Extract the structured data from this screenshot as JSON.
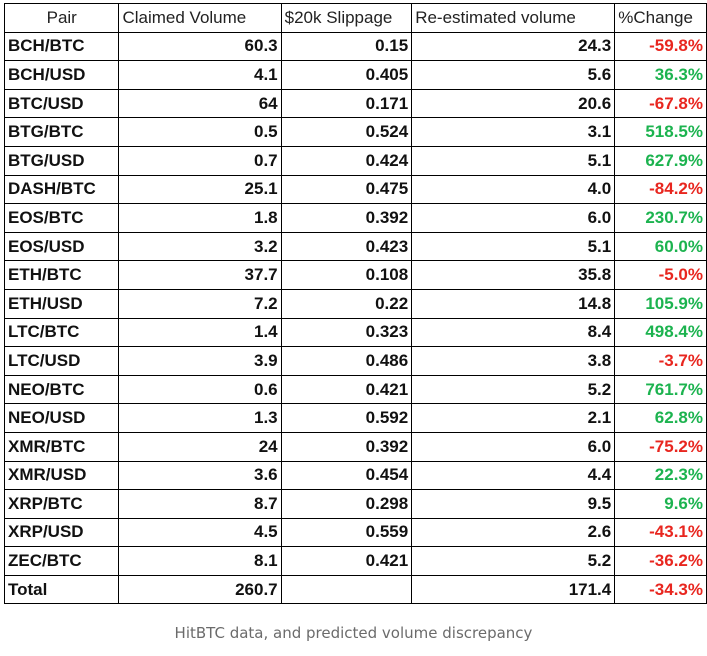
{
  "colors": {
    "positive": "#1cb34f",
    "negative": "#e8261f",
    "caption": "#6b6b6b",
    "border": "#000000"
  },
  "table": {
    "headers": [
      "Pair",
      "Claimed Volume",
      "$20k Slippage",
      "Re-estimated volume",
      "%Change"
    ],
    "rows": [
      {
        "pair": "BCH/BTC",
        "claimed": "60.3",
        "slippage": "0.15",
        "reestimated": "24.3",
        "change": "-59.8%"
      },
      {
        "pair": "BCH/USD",
        "claimed": "4.1",
        "slippage": "0.405",
        "reestimated": "5.6",
        "change": "36.3%"
      },
      {
        "pair": "BTC/USD",
        "claimed": "64",
        "slippage": "0.171",
        "reestimated": "20.6",
        "change": "-67.8%"
      },
      {
        "pair": "BTG/BTC",
        "claimed": "0.5",
        "slippage": "0.524",
        "reestimated": "3.1",
        "change": "518.5%"
      },
      {
        "pair": "BTG/USD",
        "claimed": "0.7",
        "slippage": "0.424",
        "reestimated": "5.1",
        "change": "627.9%"
      },
      {
        "pair": "DASH/BTC",
        "claimed": "25.1",
        "slippage": "0.475",
        "reestimated": "4.0",
        "change": "-84.2%"
      },
      {
        "pair": "EOS/BTC",
        "claimed": "1.8",
        "slippage": "0.392",
        "reestimated": "6.0",
        "change": "230.7%"
      },
      {
        "pair": "EOS/USD",
        "claimed": "3.2",
        "slippage": "0.423",
        "reestimated": "5.1",
        "change": "60.0%"
      },
      {
        "pair": "ETH/BTC",
        "claimed": "37.7",
        "slippage": "0.108",
        "reestimated": "35.8",
        "change": "-5.0%"
      },
      {
        "pair": "ETH/USD",
        "claimed": "7.2",
        "slippage": "0.22",
        "reestimated": "14.8",
        "change": "105.9%"
      },
      {
        "pair": "LTC/BTC",
        "claimed": "1.4",
        "slippage": "0.323",
        "reestimated": "8.4",
        "change": "498.4%"
      },
      {
        "pair": "LTC/USD",
        "claimed": "3.9",
        "slippage": "0.486",
        "reestimated": "3.8",
        "change": "-3.7%"
      },
      {
        "pair": "NEO/BTC",
        "claimed": "0.6",
        "slippage": "0.421",
        "reestimated": "5.2",
        "change": "761.7%"
      },
      {
        "pair": "NEO/USD",
        "claimed": "1.3",
        "slippage": "0.592",
        "reestimated": "2.1",
        "change": "62.8%"
      },
      {
        "pair": "XMR/BTC",
        "claimed": "24",
        "slippage": "0.392",
        "reestimated": "6.0",
        "change": "-75.2%"
      },
      {
        "pair": "XMR/USD",
        "claimed": "3.6",
        "slippage": "0.454",
        "reestimated": "4.4",
        "change": "22.3%"
      },
      {
        "pair": "XRP/BTC",
        "claimed": "8.7",
        "slippage": "0.298",
        "reestimated": "9.5",
        "change": "9.6%"
      },
      {
        "pair": "XRP/USD",
        "claimed": "4.5",
        "slippage": "0.559",
        "reestimated": "2.6",
        "change": "-43.1%"
      },
      {
        "pair": "ZEC/BTC",
        "claimed": "8.1",
        "slippage": "0.421",
        "reestimated": "5.2",
        "change": "-36.2%"
      }
    ],
    "total": {
      "pair": "Total",
      "claimed": "260.7",
      "slippage": "",
      "reestimated": "171.4",
      "change": "-34.3%"
    }
  },
  "caption": "HitBTC data, and predicted volume discrepancy"
}
